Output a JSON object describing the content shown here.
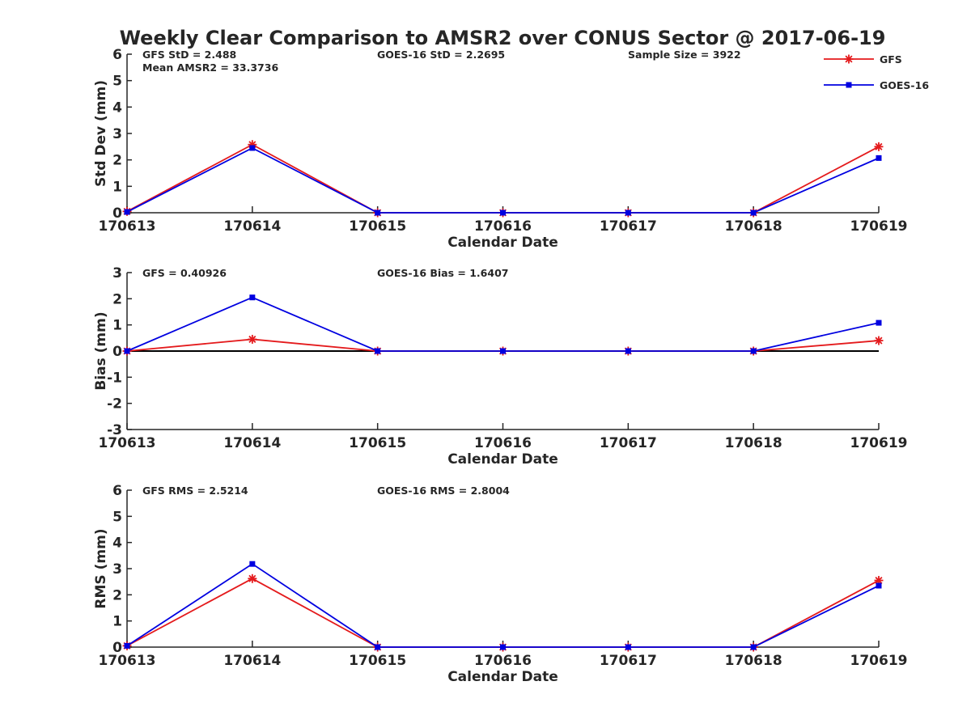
{
  "figure": {
    "title": "Weekly Clear Comparison to AMSR2 over CONUS Sector @ 2017-06-19"
  },
  "legend": {
    "placement": "top-right",
    "items": [
      {
        "name": "GFS",
        "color": "#e41a1c",
        "marker": "asterisk"
      },
      {
        "name": "GOES-16",
        "color": "#0000e0",
        "marker": "square"
      }
    ]
  },
  "chart_data": [
    {
      "type": "line",
      "id": "stddev",
      "xlabel": "Calendar Date",
      "ylabel": "Std Dev (mm)",
      "categories": [
        "170613",
        "170614",
        "170615",
        "170616",
        "170617",
        "170618",
        "170619"
      ],
      "ylim": [
        0,
        6
      ],
      "yticks": [
        "0",
        "1",
        "2",
        "3",
        "4",
        "5",
        "6"
      ],
      "annotations": [
        {
          "text": "GFS StD = 2.488",
          "slot": "left-1"
        },
        {
          "text": "Mean AMSR2 = 33.3736",
          "slot": "left-2"
        },
        {
          "text": "GOES-16 StD = 2.2695",
          "slot": "middle"
        },
        {
          "text": "Sample Size = 3922",
          "slot": "right"
        }
      ],
      "series": [
        {
          "name": "GFS",
          "color": "#e41a1c",
          "marker": "asterisk",
          "values": [
            0.05,
            2.58,
            0,
            0,
            0,
            0,
            2.5
          ]
        },
        {
          "name": "GOES-16",
          "color": "#0000e0",
          "marker": "square",
          "values": [
            0.03,
            2.45,
            0,
            0,
            0,
            0,
            2.07
          ]
        }
      ]
    },
    {
      "type": "line",
      "id": "bias",
      "xlabel": "Calendar Date",
      "ylabel": "Bias (mm)",
      "categories": [
        "170613",
        "170614",
        "170615",
        "170616",
        "170617",
        "170618",
        "170619"
      ],
      "ylim": [
        -3,
        3
      ],
      "yticks": [
        "-3",
        "-2",
        "-1",
        "0",
        "1",
        "2",
        "3"
      ],
      "zero_line": true,
      "annotations": [
        {
          "text": "GFS = 0.40926",
          "slot": "left-1"
        },
        {
          "text": "GOES-16 Bias  = 1.6407",
          "slot": "middle"
        }
      ],
      "series": [
        {
          "name": "GFS",
          "color": "#e41a1c",
          "marker": "asterisk",
          "values": [
            0,
            0.45,
            0,
            0,
            0,
            0,
            0.4
          ]
        },
        {
          "name": "GOES-16",
          "color": "#0000e0",
          "marker": "square",
          "values": [
            0,
            2.05,
            0,
            0,
            0,
            0,
            1.08
          ]
        }
      ]
    },
    {
      "type": "line",
      "id": "rms",
      "xlabel": "Calendar Date",
      "ylabel": "RMS (mm)",
      "categories": [
        "170613",
        "170614",
        "170615",
        "170616",
        "170617",
        "170618",
        "170619"
      ],
      "ylim": [
        0,
        6
      ],
      "yticks": [
        "0",
        "1",
        "2",
        "3",
        "4",
        "5",
        "6"
      ],
      "annotations": [
        {
          "text": "GFS RMS = 2.5214",
          "slot": "left-1"
        },
        {
          "text": "GOES-16 RMS = 2.8004",
          "slot": "middle"
        }
      ],
      "series": [
        {
          "name": "GFS",
          "color": "#e41a1c",
          "marker": "asterisk",
          "values": [
            0.05,
            2.62,
            0,
            0,
            0,
            0,
            2.55
          ]
        },
        {
          "name": "GOES-16",
          "color": "#0000e0",
          "marker": "square",
          "values": [
            0.05,
            3.18,
            0,
            0,
            0,
            0,
            2.35
          ]
        }
      ]
    }
  ]
}
